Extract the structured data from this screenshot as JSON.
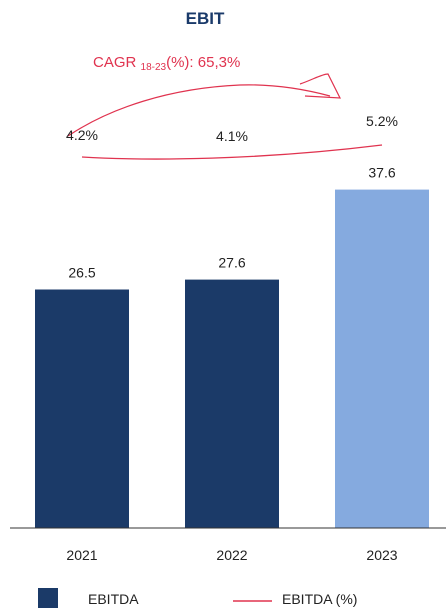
{
  "chart_data": {
    "type": "bar",
    "title": "EBIT",
    "annotation": {
      "prefix": "CAGR ",
      "subscript": "18-23",
      "suffix": "(%): 65,3%"
    },
    "categories": [
      "2021",
      "2022",
      "2023"
    ],
    "series": [
      {
        "name": "EBITDA",
        "values": [
          26.5,
          27.6,
          37.6
        ],
        "value_labels": [
          "26.5",
          "27.6",
          "37.6"
        ]
      },
      {
        "name": "EBITDA (%)",
        "values": [
          4.2,
          4.1,
          5.2
        ],
        "value_labels": [
          "4.2%",
          "4.1%",
          "5.2%"
        ]
      }
    ],
    "ylim": [
      0,
      40
    ],
    "grid": false,
    "legend_position": "bottom"
  },
  "colors": {
    "bar_actual": "#1b3a68",
    "bar_forecast": "#85aadf",
    "line": "#e0334f",
    "title": "#1a3a6a",
    "axis": "#333333"
  }
}
